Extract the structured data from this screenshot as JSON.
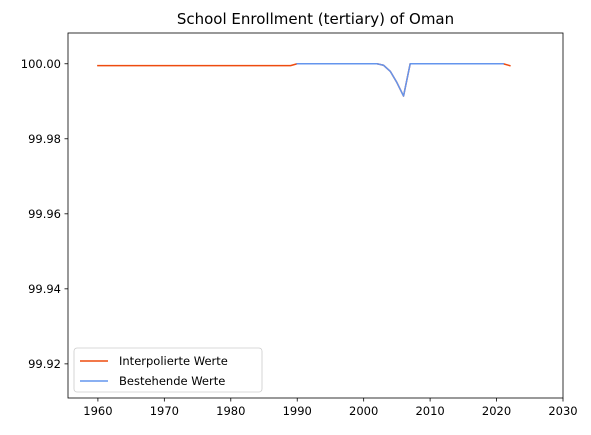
{
  "chart_data": {
    "type": "line",
    "title": "School Enrollment (tertiary) of Oman",
    "xlabel": "",
    "ylabel": "",
    "xlim": [
      1955.5,
      2030
    ],
    "ylim": [
      99.9109,
      100.0082
    ],
    "x_ticks": [
      1960,
      1970,
      1980,
      1990,
      2000,
      2010,
      2020,
      2030
    ],
    "y_ticks": [
      99.92,
      99.94,
      99.96,
      99.98,
      100.0
    ],
    "y_tick_labels": [
      "99.92",
      "99.94",
      "99.96",
      "99.98",
      "100.00"
    ],
    "x_tick_labels": [
      "1960",
      "1970",
      "1980",
      "1990",
      "2000",
      "2010",
      "2020",
      "2030"
    ],
    "legend_position": "lower-left",
    "grid": false,
    "series": [
      {
        "name": "Interpolierte Werte",
        "color": "#ee4b0f",
        "x": [
          1960,
          1989,
          1990,
          2002,
          2003,
          2004,
          2005,
          2006,
          2007,
          2021,
          2022
        ],
        "y": [
          99.9995,
          99.9995,
          100.0,
          100.0,
          99.9996,
          99.998,
          99.995,
          99.9914,
          100.0,
          100.0,
          99.9995
        ]
      },
      {
        "name": "Bestehende Werte",
        "color": "#6495ed",
        "x": [
          1990,
          2002,
          2003,
          2004,
          2005,
          2006,
          2007,
          2021
        ],
        "y": [
          100.0,
          100.0,
          99.9996,
          99.998,
          99.995,
          99.9914,
          100.0,
          100.0
        ]
      }
    ]
  }
}
